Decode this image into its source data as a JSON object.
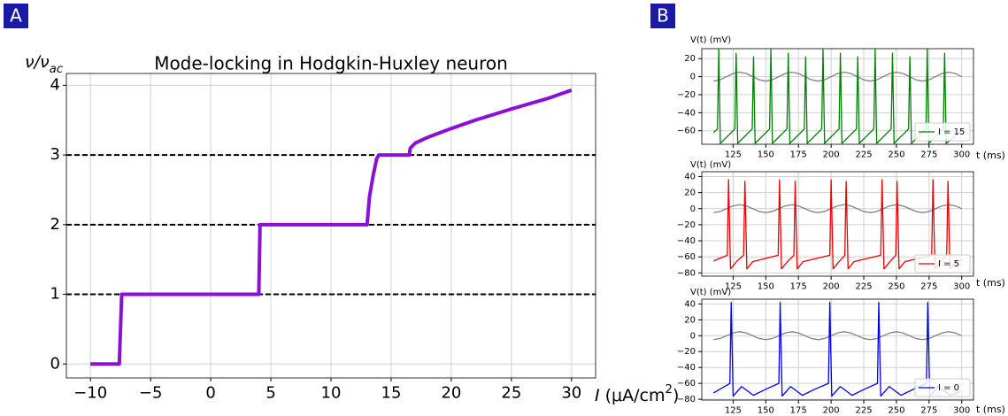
{
  "panel_labels": [
    "A",
    "B"
  ],
  "chart_data": [
    {
      "type": "line",
      "title": "Mode-locking in Hodgkin-Huxley neuron",
      "x_label": [
        "I",
        " (μA/cm",
        "2",
        ")"
      ],
      "y_label": [
        "ν/ν",
        "ac"
      ],
      "x": [
        -10,
        -7.6,
        -7.5,
        -7.4,
        4.0,
        4.1,
        13.0,
        13.2,
        13.5,
        13.8,
        14.0,
        16.5,
        16.6,
        17,
        18,
        20,
        22,
        25,
        28,
        30
      ],
      "series": [
        {
          "color": "#8b10d6",
          "values": [
            0,
            0,
            0.5,
            1,
            1,
            2,
            2,
            2.4,
            2.7,
            2.95,
            3,
            3,
            3.1,
            3.17,
            3.25,
            3.38,
            3.5,
            3.66,
            3.81,
            3.93
          ]
        }
      ],
      "hlines": [
        1,
        2,
        3
      ],
      "xlim": [
        -12,
        32
      ],
      "ylim": [
        -0.2,
        4.17
      ],
      "xticks": [
        {
          "value": -10,
          "label": "−10"
        },
        {
          "value": -5,
          "label": "−5"
        },
        0,
        5,
        10,
        15,
        20,
        25,
        30
      ],
      "yticks": [
        0,
        1,
        2,
        3,
        4
      ],
      "grid": true
    },
    {
      "type": "line",
      "x_label": [
        "t (ms)"
      ],
      "y_label": [
        "V(t) (mV)"
      ],
      "series": [
        {
          "color": "#808080",
          "x": [
            110,
            115,
            120,
            125,
            130,
            135,
            140,
            145,
            150,
            155,
            160,
            165,
            170,
            175,
            180,
            185,
            190,
            195,
            200,
            205,
            210,
            215,
            220,
            225,
            230,
            235,
            240,
            245,
            250,
            255,
            260,
            265,
            270,
            275,
            280,
            285,
            290,
            295,
            300
          ],
          "values": [
            -5,
            -3.5,
            0,
            3.5,
            5,
            3.5,
            0,
            -3.5,
            -5,
            -3.5,
            0,
            3.5,
            5,
            3.5,
            0,
            -3.5,
            -5,
            -3.5,
            0,
            3.5,
            5,
            3.5,
            0,
            -3.5,
            -5,
            -3.5,
            0,
            3.5,
            5,
            3.5,
            0,
            -3.5,
            -5,
            -3.5,
            0,
            3.5,
            5,
            3.5,
            0
          ]
        },
        {
          "name": "I = 15",
          "color": "#008000",
          "x": [
            110,
            113,
            114,
            115.2,
            126.3,
            127.3,
            128.5,
            139.6,
            140.6,
            141.8,
            152.9,
            153.9,
            155.1,
            166.2,
            167.2,
            168.4,
            179.5,
            180.5,
            181.7,
            192.8,
            193.8,
            195,
            206.1,
            207.1,
            208.3,
            219.4,
            220.4,
            221.6,
            232.7,
            233.7,
            234.9,
            246,
            247,
            248.2,
            259.3,
            260.3,
            261.5,
            272.6,
            273.6,
            274.8,
            285.9,
            286.9,
            288.1,
            300
          ],
          "values": [
            -62,
            -58,
            30,
            -74,
            -58,
            26,
            -74,
            -58,
            22,
            -74,
            -58,
            30,
            -74,
            -58,
            26,
            -74,
            -58,
            22,
            -74,
            -58,
            30,
            -74,
            -58,
            26,
            -74,
            -58,
            22,
            -74,
            -58,
            30,
            -74,
            -58,
            26,
            -74,
            -58,
            22,
            -74,
            -58,
            30,
            -74,
            -58,
            26,
            -74,
            -60
          ]
        }
      ],
      "xlim": [
        101,
        309
      ],
      "ylim": [
        -75,
        31
      ],
      "xticks": [
        125,
        150,
        175,
        200,
        225,
        250,
        275,
        300
      ],
      "yticks": [
        {
          "value": -60,
          "label": "−60"
        },
        {
          "value": -40,
          "label": "−40"
        },
        {
          "value": -20,
          "label": "−20"
        },
        0,
        20
      ],
      "grid": true,
      "legend": "lower right"
    },
    {
      "type": "line",
      "x_label": [
        "t (ms)"
      ],
      "y_label": [
        "V(t) (mV)"
      ],
      "series": [
        {
          "color": "#808080",
          "x": [
            110,
            115,
            120,
            125,
            130,
            135,
            140,
            145,
            150,
            155,
            160,
            165,
            170,
            175,
            180,
            185,
            190,
            195,
            200,
            205,
            210,
            215,
            220,
            225,
            230,
            235,
            240,
            245,
            250,
            255,
            260,
            265,
            270,
            275,
            280,
            285,
            290,
            295,
            300
          ],
          "values": [
            -5,
            -3.5,
            0,
            3.5,
            5,
            3.5,
            0,
            -3.5,
            -5,
            -3.5,
            0,
            3.5,
            5,
            3.5,
            0,
            -3.5,
            -5,
            -3.5,
            0,
            3.5,
            5,
            3.5,
            0,
            -3.5,
            -5,
            -3.5,
            0,
            3.5,
            5,
            3.5,
            0,
            -3.5,
            -5,
            -3.5,
            0,
            3.5,
            5,
            3.5,
            0
          ]
        },
        {
          "name": "I = 5",
          "color": "#ee0000",
          "x": [
            110,
            120.5,
            121.5,
            123,
            127.5,
            133,
            134,
            135.5,
            140,
            159.5,
            160.5,
            162,
            166.5,
            171.5,
            172.5,
            174,
            178.5,
            199,
            200,
            201.5,
            206,
            210.5,
            211.5,
            213,
            217.5,
            238,
            239,
            240.5,
            245,
            249.5,
            250.5,
            252,
            256.5,
            277,
            278,
            279.5,
            284,
            288.5,
            289.5,
            291,
            295.5,
            300
          ],
          "values": [
            -65,
            -58,
            36,
            -75,
            -66,
            -58,
            34,
            -75,
            -66,
            -58,
            36,
            -75,
            -66,
            -58,
            34,
            -75,
            -66,
            -58,
            36,
            -75,
            -66,
            -58,
            34,
            -75,
            -66,
            -58,
            36,
            -75,
            -66,
            -58,
            34,
            -75,
            -66,
            -58,
            36,
            -75,
            -66,
            -58,
            34,
            -75,
            -66,
            -64
          ]
        }
      ],
      "xlim": [
        101,
        309
      ],
      "ylim": [
        -84,
        46
      ],
      "xticks": [
        125,
        150,
        175,
        200,
        225,
        250,
        275,
        300
      ],
      "yticks": [
        {
          "value": -80,
          "label": "−80"
        },
        {
          "value": -60,
          "label": "−60"
        },
        {
          "value": -40,
          "label": "−40"
        },
        {
          "value": -20,
          "label": "−20"
        },
        0,
        20,
        40
      ],
      "grid": true,
      "legend": "lower right"
    },
    {
      "type": "line",
      "x_label": [
        "t (ms)"
      ],
      "y_label": [
        "V(t) (mV)"
      ],
      "series": [
        {
          "color": "#808080",
          "x": [
            110,
            115,
            120,
            125,
            130,
            135,
            140,
            145,
            150,
            155,
            160,
            165,
            170,
            175,
            180,
            185,
            190,
            195,
            200,
            205,
            210,
            215,
            220,
            225,
            230,
            235,
            240,
            245,
            250,
            255,
            260,
            265,
            270,
            275,
            280,
            285,
            290,
            295,
            300
          ],
          "values": [
            -5,
            -3.5,
            0,
            3.5,
            5,
            3.5,
            0,
            -3.5,
            -5,
            -3.5,
            0,
            3.5,
            5,
            3.5,
            0,
            -3.5,
            -5,
            -3.5,
            0,
            3.5,
            5,
            3.5,
            0,
            -3.5,
            -5,
            -3.5,
            0,
            3.5,
            5,
            3.5,
            0,
            -3.5,
            -5,
            -3.5,
            0,
            3.5,
            5,
            3.5,
            0
          ]
        },
        {
          "name": "I = 0",
          "color": "#0000ee",
          "x": [
            110,
            122.5,
            123.5,
            125,
            131.5,
            140.5,
            150.5,
            160,
            161,
            162.5,
            169,
            178,
            188,
            198,
            199,
            200.5,
            207,
            216,
            226,
            235.5,
            236.5,
            238,
            244.5,
            253.5,
            263.5,
            273,
            274,
            275.5,
            282,
            291,
            300
          ],
          "values": [
            -72,
            -60,
            42,
            -76,
            -64,
            -75,
            -67,
            -60,
            42,
            -76,
            -64,
            -75,
            -67,
            -60,
            42,
            -76,
            -64,
            -75,
            -67,
            -60,
            42,
            -76,
            -64,
            -75,
            -67,
            -60,
            42,
            -76,
            -64,
            -75,
            -70
          ]
        }
      ],
      "xlim": [
        101,
        309
      ],
      "ylim": [
        -81,
        46
      ],
      "xticks": [
        125,
        150,
        175,
        200,
        225,
        250,
        275,
        300
      ],
      "yticks": [
        {
          "value": -80,
          "label": "−80"
        },
        {
          "value": -60,
          "label": "−60"
        },
        {
          "value": -40,
          "label": "−40"
        },
        {
          "value": -20,
          "label": "−20"
        },
        0,
        20,
        40
      ],
      "grid": true,
      "legend": "lower right"
    }
  ]
}
